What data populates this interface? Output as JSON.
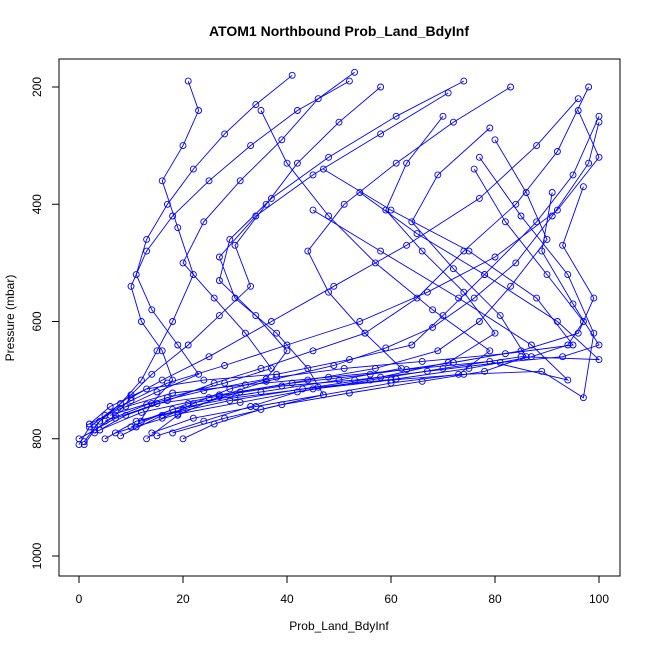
{
  "chart_data": {
    "type": "line",
    "title": "ATOM1 Northbound Prob_Land_BdyInf",
    "xlabel": "Prob_Land_BdyInf",
    "ylabel": "Pressure (mbar)",
    "xlim": [
      0,
      100
    ],
    "ylim": [
      1030,
      160
    ],
    "y_axis_reversed": true,
    "x_ticks": [
      0,
      20,
      40,
      60,
      80,
      100
    ],
    "y_ticks": [
      200,
      400,
      600,
      800,
      1000
    ],
    "grid": false,
    "legend": "none",
    "series_color": "#0000ff",
    "marker": "open-circle",
    "series": [
      {
        "x": [
          0,
          2,
          8,
          12,
          15,
          18,
          22,
          19,
          16,
          20,
          23,
          21
        ],
        "y": [
          810,
          780,
          740,
          700,
          650,
          600,
          520,
          440,
          360,
          300,
          240,
          190
        ]
      },
      {
        "x": [
          1,
          4,
          10,
          14,
          21,
          27,
          33,
          30,
          36,
          42,
          50,
          58
        ],
        "y": [
          805,
          770,
          725,
          690,
          640,
          590,
          540,
          470,
          400,
          330,
          260,
          200
        ]
      },
      {
        "x": [
          3,
          9,
          17,
          26,
          35,
          45,
          55,
          65,
          74,
          84,
          92,
          98
        ],
        "y": [
          790,
          760,
          735,
          705,
          680,
          650,
          620,
          560,
          480,
          400,
          310,
          200
        ]
      },
      {
        "x": [
          2,
          6,
          13,
          24,
          38,
          52,
          64,
          70,
          78,
          88,
          95,
          100
        ],
        "y": [
          775,
          745,
          715,
          700,
          690,
          665,
          640,
          590,
          520,
          430,
          350,
          250
        ]
      },
      {
        "x": [
          5,
          11,
          20,
          31,
          44,
          57,
          69,
          77,
          83,
          90,
          86,
          80
        ],
        "y": [
          800,
          770,
          750,
          720,
          700,
          680,
          650,
          600,
          540,
          460,
          380,
          290
        ]
      },
      {
        "x": [
          0,
          7,
          15,
          27,
          41,
          56,
          72,
          85,
          96,
          99,
          93,
          97
        ],
        "y": [
          800,
          765,
          740,
          725,
          705,
          690,
          670,
          650,
          620,
          560,
          470,
          370
        ]
      },
      {
        "x": [
          4,
          12,
          25,
          39,
          53,
          67,
          81,
          93,
          100,
          95,
          89,
          91
        ],
        "y": [
          785,
          755,
          730,
          710,
          700,
          685,
          670,
          660,
          640,
          570,
          480,
          380
        ]
      },
      {
        "x": [
          8,
          16,
          29,
          43,
          58,
          71,
          80,
          74,
          66,
          59,
          63,
          70
        ],
        "y": [
          795,
          760,
          735,
          715,
          695,
          670,
          620,
          550,
          480,
          410,
          330,
          250
        ]
      },
      {
        "x": [
          10,
          18,
          30,
          46,
          61,
          75,
          87,
          94,
          97,
          90,
          82,
          76
        ],
        "y": [
          780,
          750,
          730,
          712,
          698,
          680,
          660,
          640,
          600,
          520,
          430,
          340
        ]
      },
      {
        "x": [
          14,
          22,
          34,
          47,
          60,
          73,
          79,
          68,
          57,
          48,
          40,
          35
        ],
        "y": [
          790,
          765,
          745,
          725,
          705,
          690,
          650,
          580,
          500,
          420,
          330,
          240
        ]
      },
      {
        "x": [
          12,
          21,
          35,
          50,
          62,
          55,
          48,
          44,
          51,
          61,
          72,
          83
        ],
        "y": [
          770,
          740,
          720,
          700,
          680,
          620,
          550,
          480,
          400,
          330,
          260,
          200
        ]
      },
      {
        "x": [
          6,
          17,
          28,
          37,
          32,
          26,
          20,
          24,
          31,
          39,
          46,
          53
        ],
        "y": [
          760,
          730,
          705,
          680,
          620,
          560,
          500,
          430,
          360,
          290,
          220,
          175
        ]
      },
      {
        "x": [
          9,
          15,
          23,
          19,
          14,
          11,
          13,
          17,
          22,
          28,
          34,
          41
        ],
        "y": [
          745,
          720,
          690,
          640,
          580,
          520,
          460,
          400,
          340,
          280,
          230,
          180
        ]
      },
      {
        "x": [
          13,
          19,
          27,
          36,
          49,
          59,
          68,
          76,
          84,
          91,
          98,
          100
        ],
        "y": [
          800,
          760,
          728,
          702,
          675,
          645,
          610,
          560,
          500,
          420,
          330,
          260
        ]
      },
      {
        "x": [
          1,
          3,
          7,
          10,
          16,
          25,
          37,
          49,
          63,
          77,
          88,
          96
        ],
        "y": [
          810,
          785,
          760,
          730,
          700,
          660,
          600,
          540,
          470,
          390,
          300,
          220
        ]
      },
      {
        "x": [
          11,
          14,
          18,
          16,
          12,
          10,
          13,
          18,
          25,
          33,
          42,
          52
        ],
        "y": [
          780,
          740,
          700,
          650,
          600,
          540,
          480,
          420,
          360,
          300,
          240,
          190
        ]
      },
      {
        "x": [
          15,
          24,
          33,
          42,
          56,
          70,
          85,
          100,
          92,
          78,
          65,
          54
        ],
        "y": [
          795,
          770,
          745,
          720,
          700,
          680,
          660,
          665,
          600,
          520,
          450,
          380
        ]
      },
      {
        "x": [
          2,
          8,
          18,
          32,
          48,
          63,
          79,
          94,
          87,
          73,
          58,
          45
        ],
        "y": [
          775,
          748,
          722,
          708,
          695,
          682,
          668,
          700,
          640,
          560,
          480,
          410
        ]
      },
      {
        "x": [
          20,
          26,
          35,
          47,
          44,
          38,
          30,
          27,
          34,
          45,
          58,
          71
        ],
        "y": [
          800,
          775,
          750,
          725,
          680,
          620,
          560,
          490,
          420,
          350,
          280,
          210
        ]
      },
      {
        "x": [
          7,
          19,
          31,
          45,
          60,
          74,
          89,
          97,
          99,
          94,
          85,
          77
        ],
        "y": [
          790,
          758,
          738,
          715,
          700,
          690,
          685,
          730,
          620,
          520,
          420,
          320
        ]
      },
      {
        "x": [
          3,
          5,
          10,
          17,
          28,
          40,
          54,
          67,
          80,
          92,
          100,
          96
        ],
        "y": [
          780,
          760,
          735,
          705,
          675,
          640,
          600,
          550,
          490,
          410,
          320,
          240
        ]
      },
      {
        "x": [
          16,
          22,
          29,
          38,
          51,
          66,
          82,
          95,
          88,
          75,
          60,
          47
        ],
        "y": [
          765,
          740,
          715,
          695,
          680,
          668,
          655,
          640,
          560,
          480,
          410,
          340
        ]
      },
      {
        "x": [
          18,
          28,
          39,
          52,
          66,
          78,
          86,
          81,
          72,
          64,
          69,
          79
        ],
        "y": [
          790,
          765,
          742,
          722,
          702,
          685,
          660,
          590,
          510,
          430,
          350,
          270
        ]
      },
      {
        "x": [
          5,
          13,
          24,
          36,
          40,
          34,
          27,
          29,
          37,
          48,
          61,
          74
        ],
        "y": [
          770,
          742,
          718,
          698,
          650,
          590,
          530,
          460,
          390,
          320,
          250,
          190
        ]
      }
    ]
  }
}
